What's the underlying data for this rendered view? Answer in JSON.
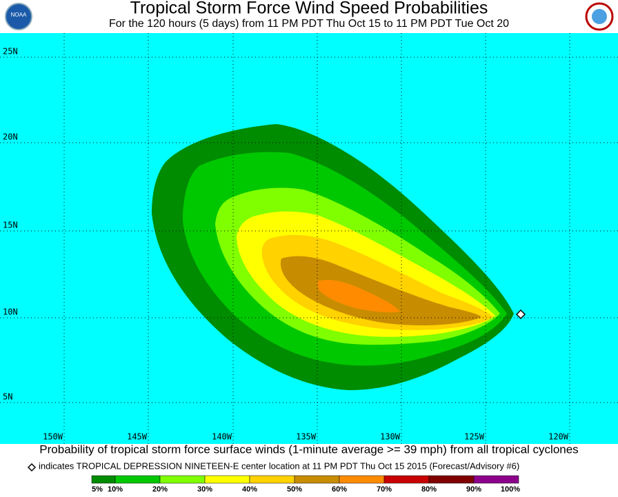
{
  "header": {
    "title": "Tropical Storm Force Wind Speed Probabilities",
    "subtitle": "For the 120 hours (5 days) from 11 PM PDT Thu Oct 15 to 11 PM PDT Tue Oct 20"
  },
  "map": {
    "lat_labels": [
      "25N",
      "20N",
      "15N",
      "10N",
      "5N"
    ],
    "lon_labels": [
      "150W",
      "145W",
      "140W",
      "135W",
      "130W",
      "125W",
      "120W"
    ]
  },
  "caption": "Probability of tropical storm force surface winds (1-minute average >= 39 mph) from all tropical cyclones",
  "note": "indicates TROPICAL DEPRESSION NINETEEN-E center location at 11 PM PDT Thu Oct 15 2015 (Forecast/Advisory #6)",
  "legend": {
    "labels": [
      "5%",
      "10%",
      "20%",
      "30%",
      "40%",
      "50%",
      "60%",
      "70%",
      "80%",
      "90%",
      "100%"
    ],
    "colors": [
      "#008c00",
      "#00c800",
      "#80ff00",
      "#ffff00",
      "#ffd200",
      "#c88c00",
      "#ff8c00",
      "#c80000",
      "#800000",
      "#8c008c"
    ]
  }
}
